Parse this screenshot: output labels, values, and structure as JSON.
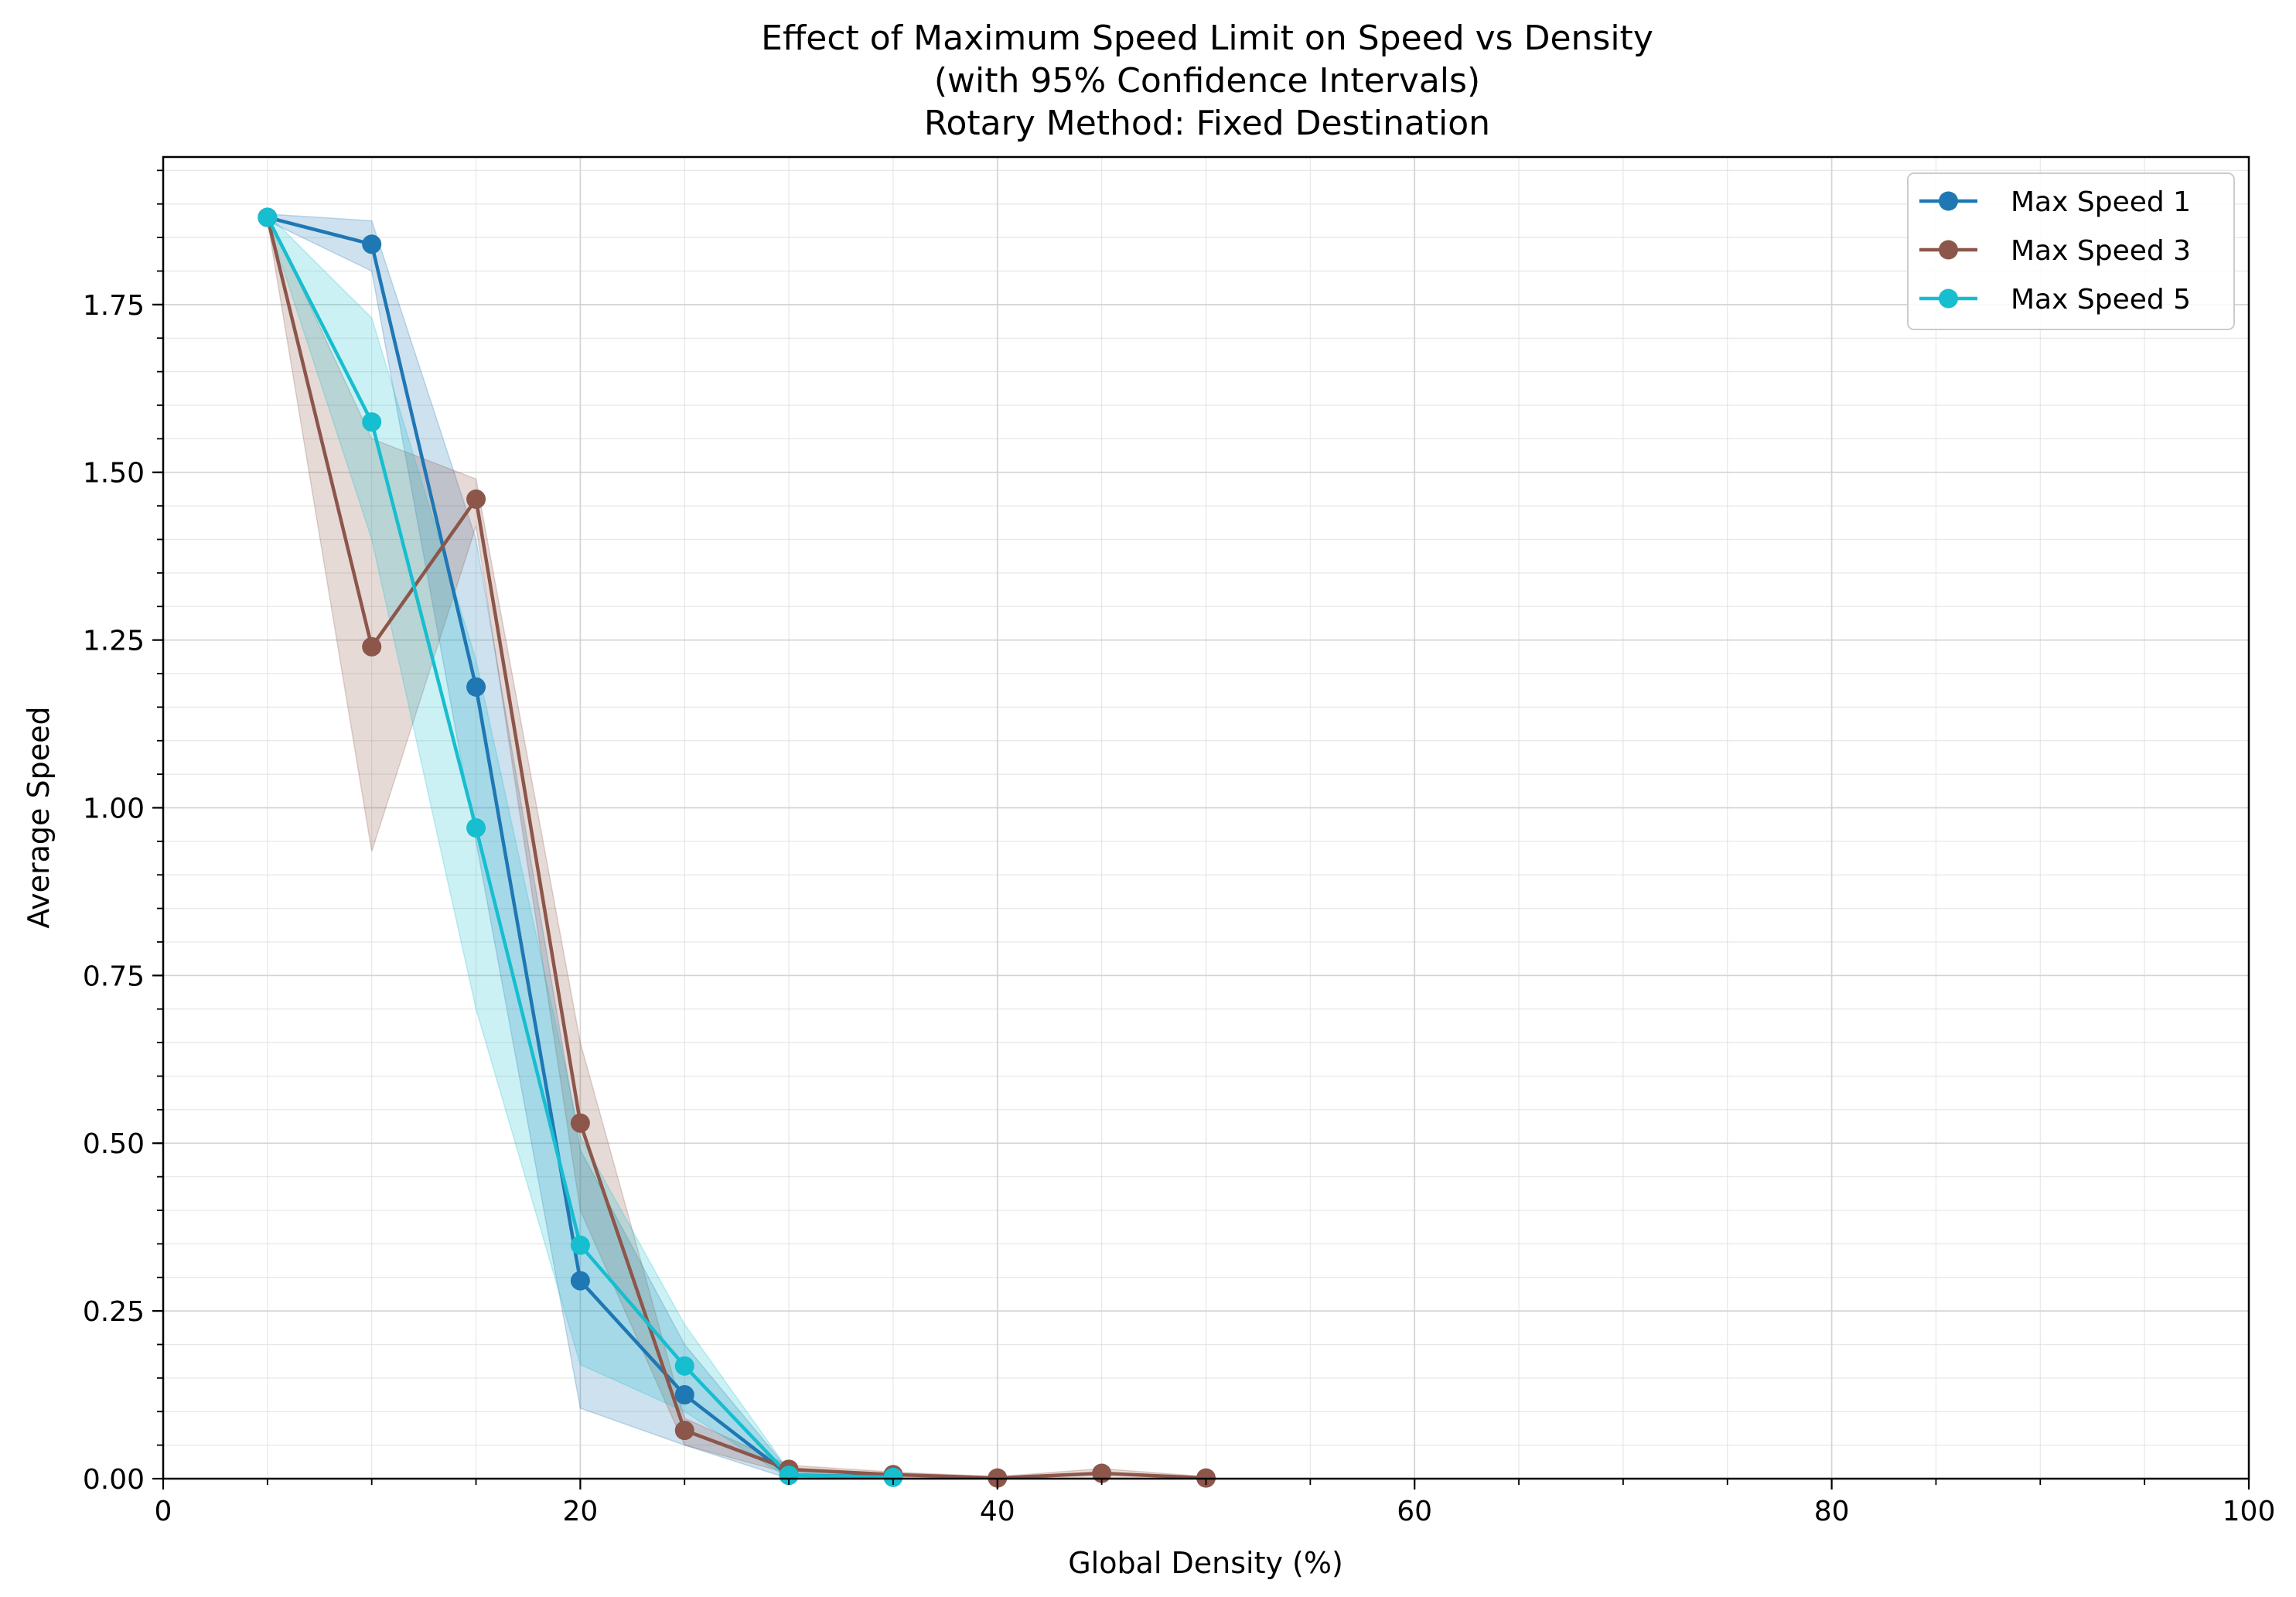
{
  "chart_data": {
    "type": "line",
    "title_lines": [
      "Effect of Maximum Speed Limit on Speed vs Density",
      "(with 95% Confidence Intervals)",
      "Rotary Method: Fixed Destination"
    ],
    "xlabel": "Global Density (%)",
    "ylabel": "Average Speed",
    "xlim": [
      0,
      100
    ],
    "ylim": [
      0,
      1.97
    ],
    "x_ticks": [
      0,
      20,
      40,
      60,
      80,
      100
    ],
    "x_tick_labels": [
      "0",
      "20",
      "40",
      "60",
      "80",
      "100"
    ],
    "y_ticks": [
      0,
      0.25,
      0.5,
      0.75,
      1.0,
      1.25,
      1.5,
      1.75
    ],
    "y_tick_labels": [
      "0.00",
      "0.25",
      "0.50",
      "0.75",
      "1.00",
      "1.25",
      "1.50",
      "1.75"
    ],
    "grid": true,
    "minor_grid": true,
    "legend_position": "top-right",
    "series": [
      {
        "name": "Max Speed 1",
        "color": "#1f77b4",
        "x": [
          5,
          10,
          15,
          20,
          25,
          30,
          35
        ],
        "y": [
          1.88,
          1.84,
          1.18,
          0.295,
          0.125,
          0.005,
          0.003
        ],
        "ci_low": [
          1.875,
          1.8,
          0.95,
          0.105,
          0.05,
          0.0,
          0.0
        ],
        "ci_high": [
          1.885,
          1.875,
          1.4,
          0.49,
          0.2,
          0.012,
          0.006
        ]
      },
      {
        "name": "Max Speed 3",
        "color": "#8c564b",
        "x": [
          5,
          10,
          15,
          20,
          25,
          30,
          35,
          40,
          45,
          50
        ],
        "y": [
          1.88,
          1.24,
          1.46,
          0.53,
          0.072,
          0.014,
          0.006,
          0.001,
          0.008,
          0.001
        ],
        "ci_low": [
          1.875,
          0.935,
          1.42,
          0.4,
          0.05,
          0.008,
          0.002,
          0.0,
          0.0,
          0.0
        ],
        "ci_high": [
          1.885,
          1.55,
          1.49,
          0.65,
          0.09,
          0.02,
          0.01,
          0.003,
          0.015,
          0.003
        ]
      },
      {
        "name": "Max Speed 5",
        "color": "#17becf",
        "x": [
          5,
          10,
          15,
          20,
          25,
          30,
          35
        ],
        "y": [
          1.88,
          1.575,
          0.97,
          0.348,
          0.168,
          0.005,
          0.002
        ],
        "ci_low": [
          1.875,
          1.4,
          0.7,
          0.17,
          0.1,
          0.0,
          0.0
        ],
        "ci_high": [
          1.885,
          1.73,
          1.22,
          0.51,
          0.23,
          0.012,
          0.005
        ]
      }
    ]
  }
}
